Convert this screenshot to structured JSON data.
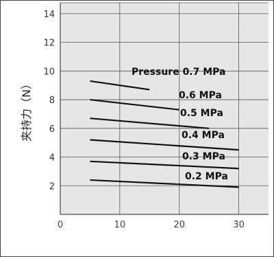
{
  "chart_data": {
    "type": "line",
    "title": "",
    "xlabel": "",
    "ylabel": "夹持力（N）",
    "xlim": [
      0,
      35
    ],
    "ylim": [
      0,
      14
    ],
    "x_ticks": [
      "0",
      "10",
      "20",
      "30"
    ],
    "y_ticks": [
      "2",
      "4",
      "6",
      "8",
      "10",
      "12",
      "14"
    ],
    "grid": true,
    "background": "#e6e6e6",
    "line_color": "#111111",
    "series": [
      {
        "name": "Pressure 0.7 MPa",
        "x": [
          5,
          15
        ],
        "y": [
          9.3,
          8.7
        ]
      },
      {
        "name": "0.6 MPa",
        "x": [
          5,
          20
        ],
        "y": [
          8.0,
          7.3
        ]
      },
      {
        "name": "0.5 MPa",
        "x": [
          5,
          25
        ],
        "y": [
          6.7,
          6.0
        ]
      },
      {
        "name": "0.4 MPa",
        "x": [
          5,
          30
        ],
        "y": [
          5.2,
          4.5
        ]
      },
      {
        "name": "0.3 MPa",
        "x": [
          5,
          30
        ],
        "y": [
          3.7,
          3.2
        ]
      },
      {
        "name": "0.2 MPa",
        "x": [
          5,
          30
        ],
        "y": [
          2.4,
          1.9
        ]
      }
    ]
  }
}
